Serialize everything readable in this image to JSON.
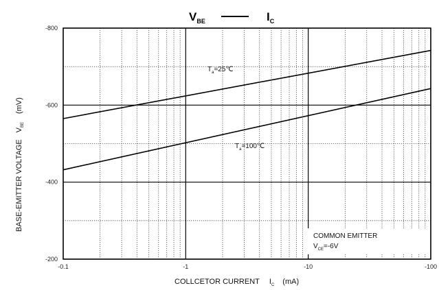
{
  "chart_data": {
    "type": "line",
    "title": {
      "left": "V",
      "left_sub": "BE",
      "right": "I",
      "right_sub": "C"
    },
    "xlabel": {
      "text": "COLLCETOR CURRENT",
      "symbol": "I",
      "symbol_sub": "C",
      "unit": "(mA)"
    },
    "ylabel": {
      "text": "BASE-EMITTER VOLTAGE",
      "symbol": "V",
      "symbol_sub": "BE",
      "unit": "(mV)"
    },
    "x_scale": "log",
    "xlim": [
      -0.1,
      -100
    ],
    "ylim": [
      -200,
      -800
    ],
    "x_ticks": [
      {
        "value": 0.1,
        "label": "-0.1"
      },
      {
        "value": 1,
        "label": "-1"
      },
      {
        "value": 10,
        "label": "-10"
      },
      {
        "value": 100,
        "label": "-100"
      }
    ],
    "y_ticks": [
      {
        "value": 200,
        "label": "-200"
      },
      {
        "value": 400,
        "label": "-400"
      },
      {
        "value": 600,
        "label": "-600"
      },
      {
        "value": 800,
        "label": "-800"
      }
    ],
    "grid": true,
    "series": [
      {
        "name": "Ta=25℃",
        "label_main": "T",
        "label_sub": "a",
        "label_rest": "=25℃",
        "x": [
          -0.1,
          -100
        ],
        "y": [
          -565,
          -742
        ]
      },
      {
        "name": "Ta=100℃",
        "label_main": "T",
        "label_sub": "a",
        "label_rest": "=100℃",
        "x": [
          -0.1,
          -100
        ],
        "y": [
          -432,
          -643
        ]
      }
    ],
    "annotation": {
      "line1": "COMMON EMITTER",
      "symbol": "V",
      "symbol_sub": "CE",
      "value": "=-6V"
    }
  }
}
